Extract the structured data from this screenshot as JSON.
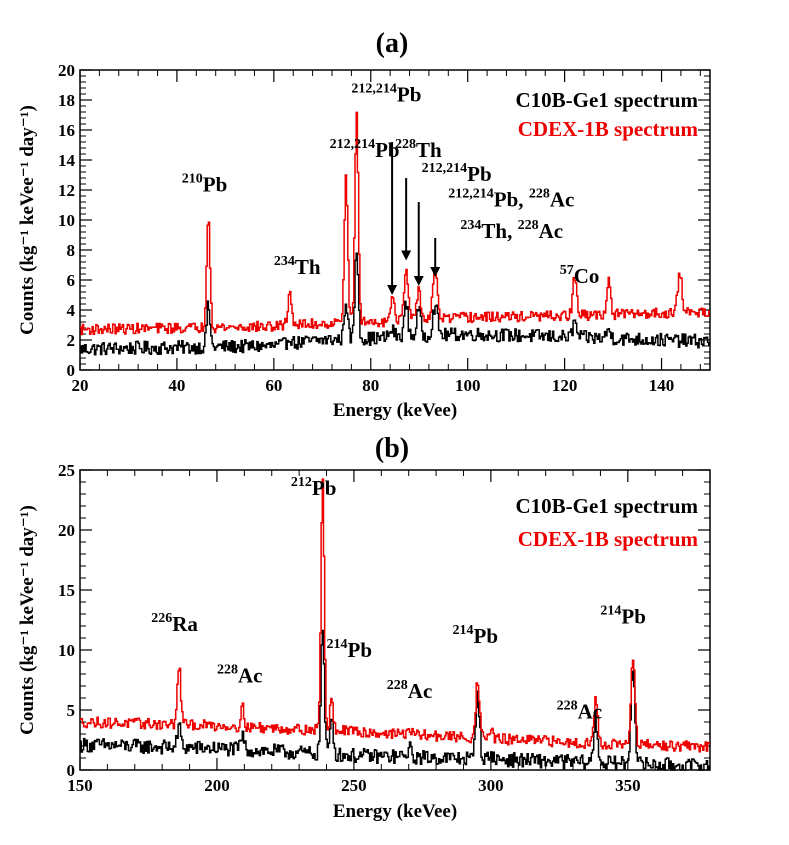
{
  "chart_data": [
    {
      "type": "line",
      "panel_label": "(a)",
      "xlabel": "Energy (keVee)",
      "ylabel": "Counts (kg⁻¹ keVee⁻¹ day⁻¹)",
      "xlim": [
        20,
        150
      ],
      "ylim": [
        0,
        20
      ],
      "xticks": [
        20,
        40,
        60,
        80,
        100,
        120,
        140
      ],
      "yticks": [
        0,
        2,
        4,
        6,
        8,
        10,
        12,
        14,
        16,
        18,
        20
      ],
      "legend_position": "top-right",
      "series": [
        {
          "name": "C10B-Ge1 spectrum",
          "color": "#000000",
          "baseline": [
            [
              20,
              1.4
            ],
            [
              60,
              1.6
            ],
            [
              70,
              2.0
            ],
            [
              80,
              2.1
            ],
            [
              100,
              2.4
            ],
            [
              120,
              2.2
            ],
            [
              150,
              1.9
            ]
          ],
          "noise": 0.45,
          "peaks": [
            [
              46.5,
              2.8,
              0.35
            ],
            [
              63.3,
              0.5,
              0.4
            ],
            [
              74.9,
              2.6,
              0.35
            ],
            [
              77.1,
              6.0,
              0.35
            ],
            [
              84.4,
              0.5,
              0.5
            ],
            [
              87.3,
              2.2,
              0.4
            ],
            [
              89.9,
              1.8,
              0.4
            ],
            [
              93.3,
              2.0,
              0.5
            ],
            [
              122.1,
              1.0,
              0.4
            ],
            [
              129.1,
              0.6,
              0.4
            ]
          ]
        },
        {
          "name": "CDEX-1B spectrum",
          "color": "#ee0000",
          "baseline": [
            [
              20,
              2.7
            ],
            [
              60,
              2.9
            ],
            [
              70,
              3.1
            ],
            [
              80,
              3.2
            ],
            [
              100,
              3.5
            ],
            [
              120,
              3.6
            ],
            [
              150,
              3.9
            ]
          ],
          "noise": 0.35,
          "peaks": [
            [
              46.5,
              7.6,
              0.35
            ],
            [
              63.3,
              2.2,
              0.4
            ],
            [
              74.9,
              9.8,
              0.35
            ],
            [
              77.1,
              13.8,
              0.35
            ],
            [
              84.4,
              1.4,
              0.5
            ],
            [
              87.3,
              3.4,
              0.4
            ],
            [
              89.9,
              2.1,
              0.4
            ],
            [
              93.3,
              3.0,
              0.5
            ],
            [
              122.1,
              2.6,
              0.4
            ],
            [
              129.1,
              2.2,
              0.4
            ],
            [
              143.8,
              2.5,
              0.45
            ]
          ]
        }
      ],
      "annotations": [
        {
          "label": "Pb",
          "sup": "210",
          "x": 41,
          "y": 11.9
        },
        {
          "label": "Th",
          "sup": "234",
          "x": 60,
          "y": 6.4
        },
        {
          "label": "Pb",
          "sup": "212,214",
          "x": 71.5,
          "y": 14.2
        },
        {
          "label": "Pb",
          "sup": "212,214",
          "x": 76,
          "y": 17.9
        },
        {
          "label": "Th",
          "sup": "228",
          "x": 85,
          "y": 14.2
        },
        {
          "label": "Pb",
          "sup": "212,214",
          "x": 90.5,
          "y": 12.6
        },
        {
          "label": "Pb, ",
          "sup": "212,214",
          "label2": "Ac",
          "sup2": "228",
          "x": 96,
          "y": 10.9
        },
        {
          "label": "Th, ",
          "sup": "234",
          "label2": "Ac",
          "sup2": "228",
          "x": 98.5,
          "y": 8.8
        },
        {
          "label": "Co",
          "sup": "57",
          "x": 119,
          "y": 5.8
        }
      ],
      "arrows": [
        {
          "x": 84.4,
          "y_from": 15.2,
          "y_to": 5.0
        },
        {
          "x": 87.3,
          "y_from": 12.8,
          "y_to": 7.3
        },
        {
          "x": 89.9,
          "y_from": 11.2,
          "y_to": 5.6
        },
        {
          "x": 93.3,
          "y_from": 8.8,
          "y_to": 6.2
        }
      ]
    },
    {
      "type": "line",
      "panel_label": "(b)",
      "xlabel": "Energy (keVee)",
      "ylabel": "Counts (kg⁻¹ keVee⁻¹ day⁻¹)",
      "xlim": [
        150,
        380
      ],
      "ylim": [
        0,
        25
      ],
      "xticks": [
        150,
        200,
        250,
        300,
        350
      ],
      "yticks": [
        0,
        5,
        10,
        15,
        20,
        25
      ],
      "legend_position": "top-right",
      "series": [
        {
          "name": "C10B-Ge1 spectrum",
          "color": "#000000",
          "baseline": [
            [
              150,
              2.1
            ],
            [
              200,
              1.8
            ],
            [
              250,
              1.2
            ],
            [
              300,
              0.9
            ],
            [
              340,
              0.6
            ],
            [
              380,
              0.3
            ]
          ],
          "noise": 0.6,
          "peaks": [
            [
              186.2,
              1.8,
              0.6
            ],
            [
              209.3,
              1.2,
              0.6
            ],
            [
              238.6,
              10.5,
              0.6
            ],
            [
              241.9,
              3.2,
              0.6
            ],
            [
              270.2,
              0.8,
              0.6
            ],
            [
              295.2,
              5.5,
              0.7
            ],
            [
              300.1,
              0.5,
              0.6
            ],
            [
              338.3,
              3.5,
              0.7
            ],
            [
              351.9,
              8.3,
              0.7
            ]
          ]
        },
        {
          "name": "CDEX-1B spectrum",
          "color": "#ee0000",
          "baseline": [
            [
              150,
              4.0
            ],
            [
              200,
              3.7
            ],
            [
              250,
              3.2
            ],
            [
              300,
              2.6
            ],
            [
              340,
              2.2
            ],
            [
              380,
              1.9
            ]
          ],
          "noise": 0.45,
          "peaks": [
            [
              186.2,
              5.0,
              0.6
            ],
            [
              209.3,
              1.6,
              0.6
            ],
            [
              238.6,
              20.8,
              0.6
            ],
            [
              241.9,
              2.6,
              0.6
            ],
            [
              270.2,
              0.6,
              0.6
            ],
            [
              295.2,
              4.7,
              0.7
            ],
            [
              300.1,
              0.9,
              0.6
            ],
            [
              338.3,
              3.6,
              0.7
            ],
            [
              351.9,
              7.2,
              0.7
            ]
          ]
        }
      ],
      "annotations": [
        {
          "label": "Ra",
          "sup": "226",
          "x": 176,
          "y": 11.6
        },
        {
          "label": "Ac",
          "sup": "228",
          "x": 200,
          "y": 7.3
        },
        {
          "label": "Pb",
          "sup": "212",
          "x": 227,
          "y": 22.9
        },
        {
          "label": "Pb",
          "sup": "214",
          "x": 240,
          "y": 9.4
        },
        {
          "label": "Ac",
          "sup": "228",
          "x": 262,
          "y": 6.0
        },
        {
          "label": "Pb",
          "sup": "214",
          "x": 286,
          "y": 10.6
        },
        {
          "label": "Ac",
          "sup": "228",
          "x": 324,
          "y": 4.3
        },
        {
          "label": "Pb",
          "sup": "214",
          "x": 340,
          "y": 12.2
        }
      ],
      "arrows": []
    }
  ]
}
